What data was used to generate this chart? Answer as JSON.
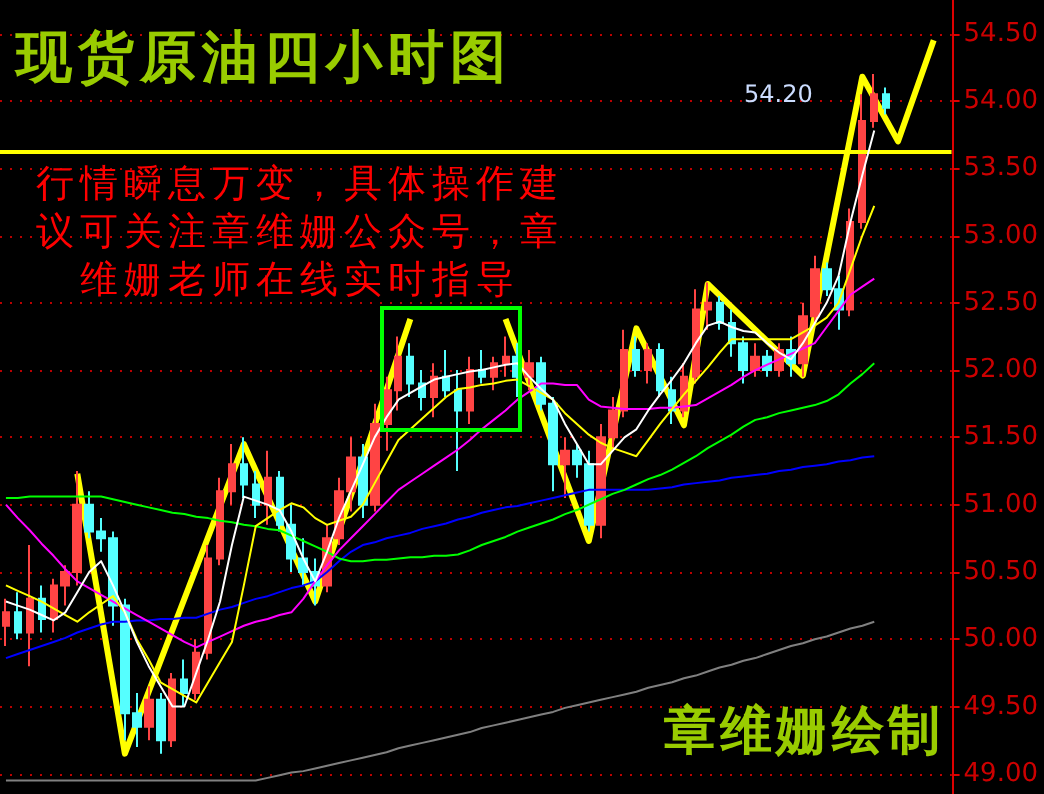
{
  "chart_data": {
    "type": "candlestick",
    "title": "现货原油四小时图",
    "annotations": [
      "行情瞬息万变，具体操作建议可关注章维姗公众号，章维姗老师在线实时指导",
      "章维姗绘制",
      "54.20"
    ],
    "categories": [
      null,
      null,
      null,
      null,
      null,
      null,
      null,
      null,
      null,
      null,
      null,
      null,
      null,
      null,
      null,
      null,
      null,
      null,
      null,
      null,
      null,
      null,
      null,
      null,
      null,
      null,
      null,
      null,
      null,
      null,
      null,
      null,
      null,
      null,
      null,
      null,
      null,
      null,
      null,
      null,
      null,
      null,
      null,
      null,
      null,
      null,
      null,
      null,
      null,
      null,
      null,
      null,
      null,
      null,
      null,
      null,
      null,
      null,
      null,
      null,
      null,
      null,
      null,
      null,
      null,
      null,
      null,
      null,
      null,
      null,
      null,
      null,
      null,
      null,
      null,
      null,
      null,
      null,
      null,
      null
    ],
    "ohlc": [
      [
        50.1,
        50.3,
        49.95,
        50.2
      ],
      [
        50.2,
        50.35,
        50.0,
        50.05
      ],
      [
        50.05,
        50.7,
        49.8,
        50.3
      ],
      [
        50.3,
        50.4,
        50.05,
        50.15
      ],
      [
        50.15,
        50.45,
        50.05,
        50.4
      ],
      [
        50.4,
        50.55,
        50.25,
        50.5
      ],
      [
        50.5,
        51.25,
        50.4,
        51.0
      ],
      [
        51.0,
        51.1,
        50.75,
        50.8
      ],
      [
        50.8,
        50.9,
        50.65,
        50.75
      ],
      [
        50.75,
        50.8,
        50.1,
        50.25
      ],
      [
        50.25,
        50.3,
        49.25,
        49.45
      ],
      [
        49.45,
        49.6,
        49.2,
        49.35
      ],
      [
        49.35,
        49.65,
        49.25,
        49.55
      ],
      [
        49.55,
        49.6,
        49.15,
        49.25
      ],
      [
        49.25,
        49.75,
        49.2,
        49.7
      ],
      [
        49.7,
        49.85,
        49.5,
        49.6
      ],
      [
        49.6,
        50.0,
        49.55,
        49.9
      ],
      [
        49.9,
        50.7,
        49.85,
        50.6
      ],
      [
        50.6,
        51.2,
        50.55,
        51.1
      ],
      [
        51.1,
        51.45,
        51.0,
        51.3
      ],
      [
        51.3,
        51.5,
        51.05,
        51.15
      ],
      [
        51.15,
        51.25,
        50.9,
        51.0
      ],
      [
        51.0,
        51.4,
        50.85,
        51.2
      ],
      [
        51.2,
        51.25,
        50.8,
        50.85
      ],
      [
        50.85,
        51.0,
        50.5,
        50.6
      ],
      [
        50.6,
        50.75,
        50.4,
        50.5
      ],
      [
        50.5,
        50.6,
        50.25,
        50.4
      ],
      [
        50.4,
        50.85,
        50.35,
        50.75
      ],
      [
        50.75,
        51.2,
        50.7,
        51.1
      ],
      [
        51.1,
        51.5,
        50.95,
        51.35
      ],
      [
        51.35,
        51.45,
        50.9,
        51.0
      ],
      [
        51.0,
        51.75,
        50.95,
        51.6
      ],
      [
        51.6,
        51.95,
        51.4,
        51.85
      ],
      [
        51.85,
        52.25,
        51.7,
        52.1
      ],
      [
        52.1,
        52.2,
        51.8,
        51.9
      ],
      [
        51.9,
        52.0,
        51.7,
        51.8
      ],
      [
        51.8,
        52.05,
        51.65,
        51.95
      ],
      [
        51.95,
        52.15,
        51.8,
        51.85
      ],
      [
        51.85,
        52.0,
        51.25,
        51.7
      ],
      [
        51.7,
        52.1,
        51.6,
        52.0
      ],
      [
        52.0,
        52.15,
        51.9,
        51.95
      ],
      [
        51.95,
        52.1,
        51.85,
        52.05
      ],
      [
        52.05,
        52.25,
        51.95,
        52.1
      ],
      [
        52.1,
        52.2,
        51.8,
        51.95
      ],
      [
        51.95,
        52.15,
        51.85,
        52.05
      ],
      [
        52.05,
        52.1,
        51.7,
        51.75
      ],
      [
        51.75,
        51.8,
        51.1,
        51.3
      ],
      [
        51.3,
        51.5,
        51.05,
        51.4
      ],
      [
        51.4,
        51.45,
        51.2,
        51.3
      ],
      [
        51.3,
        51.4,
        50.8,
        50.85
      ],
      [
        50.85,
        51.6,
        50.75,
        51.5
      ],
      [
        51.5,
        51.8,
        51.4,
        51.7
      ],
      [
        51.7,
        52.3,
        51.65,
        52.15
      ],
      [
        52.15,
        52.25,
        51.95,
        52.0
      ],
      [
        52.0,
        52.2,
        51.9,
        52.15
      ],
      [
        52.15,
        52.2,
        51.8,
        51.85
      ],
      [
        51.85,
        51.95,
        51.6,
        51.7
      ],
      [
        51.7,
        52.05,
        51.65,
        51.95
      ],
      [
        51.95,
        52.6,
        51.9,
        52.45
      ],
      [
        52.45,
        52.65,
        52.3,
        52.5
      ],
      [
        52.5,
        52.55,
        52.3,
        52.35
      ],
      [
        52.35,
        52.45,
        52.1,
        52.2
      ],
      [
        52.2,
        52.25,
        51.9,
        52.0
      ],
      [
        52.0,
        52.2,
        51.95,
        52.1
      ],
      [
        52.1,
        52.15,
        51.95,
        52.0
      ],
      [
        52.0,
        52.2,
        51.95,
        52.15
      ],
      [
        52.15,
        52.25,
        51.95,
        52.05
      ],
      [
        52.05,
        52.5,
        51.95,
        52.4
      ],
      [
        52.4,
        52.85,
        52.35,
        52.75
      ],
      [
        52.75,
        52.8,
        52.55,
        52.6
      ],
      [
        52.6,
        52.7,
        52.3,
        52.45
      ],
      [
        52.45,
        53.2,
        52.4,
        53.1
      ],
      [
        53.1,
        54.05,
        53.05,
        53.85
      ],
      [
        53.85,
        54.2,
        53.8,
        54.05
      ],
      [
        54.05,
        54.1,
        53.9,
        53.95
      ],
      null,
      null,
      null,
      null,
      null
    ],
    "series": [
      {
        "type": "line",
        "color": "#808080",
        "values": [
          48.95,
          48.95,
          48.95,
          48.95,
          48.95,
          48.95,
          48.95,
          48.95,
          48.95,
          48.95,
          48.95,
          48.95,
          48.95,
          48.95,
          48.95,
          48.95,
          48.95,
          48.95,
          48.95,
          48.95,
          48.95,
          48.95,
          48.97,
          48.99,
          49.01,
          49.02,
          49.04,
          49.06,
          49.08,
          49.1,
          49.12,
          49.14,
          49.16,
          49.19,
          49.21,
          49.23,
          49.25,
          49.27,
          49.29,
          49.31,
          49.34,
          49.36,
          49.38,
          49.4,
          49.42,
          49.44,
          49.46,
          49.49,
          49.51,
          49.53,
          49.55,
          49.57,
          49.59,
          49.61,
          49.64,
          49.66,
          49.68,
          49.71,
          49.73,
          49.76,
          49.79,
          49.81,
          49.84,
          49.86,
          49.89,
          49.92,
          49.95,
          49.97,
          50.0,
          50.02,
          50.05,
          50.08,
          50.1,
          50.13,
          null,
          null,
          null,
          null,
          null,
          null
        ]
      },
      {
        "type": "line",
        "color": "#0000ff",
        "values": [
          49.86,
          49.89,
          49.92,
          49.95,
          49.98,
          50.01,
          50.05,
          50.08,
          50.11,
          50.13,
          50.13,
          50.14,
          50.14,
          50.15,
          50.15,
          50.16,
          50.16,
          50.19,
          50.22,
          50.24,
          50.27,
          50.3,
          50.32,
          50.35,
          50.38,
          50.4,
          50.43,
          50.5,
          50.58,
          50.65,
          50.7,
          50.72,
          50.75,
          50.77,
          50.79,
          50.82,
          50.84,
          50.86,
          50.89,
          50.91,
          50.94,
          50.96,
          50.98,
          50.99,
          51.01,
          51.03,
          51.05,
          51.07,
          51.09,
          51.11,
          51.11,
          51.11,
          51.11,
          51.11,
          51.11,
          51.12,
          51.13,
          51.15,
          51.16,
          51.17,
          51.18,
          51.2,
          51.21,
          51.22,
          51.23,
          51.25,
          51.26,
          51.28,
          51.29,
          51.3,
          51.32,
          51.33,
          51.35,
          51.36,
          null,
          null,
          null,
          null,
          null,
          null
        ]
      },
      {
        "type": "line",
        "color": "#00ff00",
        "values": [
          51.05,
          51.05,
          51.06,
          51.06,
          51.06,
          51.06,
          51.06,
          51.06,
          51.06,
          51.04,
          51.02,
          51.0,
          50.98,
          50.96,
          50.94,
          50.93,
          50.91,
          50.9,
          50.88,
          50.87,
          50.85,
          50.84,
          50.82,
          50.81,
          50.77,
          50.73,
          50.69,
          50.65,
          50.6,
          50.58,
          50.58,
          50.59,
          50.59,
          50.6,
          50.61,
          50.61,
          50.62,
          50.62,
          50.63,
          50.66,
          50.7,
          50.73,
          50.76,
          50.8,
          50.83,
          50.86,
          50.89,
          50.93,
          50.96,
          51.0,
          51.04,
          51.08,
          51.11,
          51.15,
          51.19,
          51.22,
          51.26,
          51.31,
          51.36,
          51.42,
          51.47,
          51.52,
          51.58,
          51.63,
          51.65,
          51.68,
          51.7,
          51.72,
          51.74,
          51.77,
          51.82,
          51.9,
          51.97,
          52.05,
          null,
          null,
          null,
          null,
          null,
          null
        ]
      },
      {
        "type": "line",
        "color": "#ff00ff",
        "values": [
          51.0,
          50.9,
          50.81,
          50.71,
          50.62,
          50.52,
          50.43,
          50.38,
          50.33,
          50.28,
          50.23,
          50.18,
          50.13,
          50.08,
          50.03,
          49.98,
          49.94,
          49.98,
          50.02,
          50.06,
          50.1,
          50.13,
          50.15,
          50.18,
          50.2,
          50.3,
          50.43,
          50.55,
          50.66,
          50.75,
          50.84,
          50.93,
          51.02,
          51.11,
          51.17,
          51.23,
          51.29,
          51.35,
          51.41,
          51.48,
          51.56,
          51.63,
          51.7,
          51.78,
          51.84,
          51.9,
          51.9,
          51.89,
          51.89,
          51.78,
          51.73,
          51.72,
          51.71,
          51.71,
          51.71,
          51.72,
          51.72,
          51.73,
          51.74,
          51.79,
          51.84,
          51.89,
          51.95,
          52.0,
          52.04,
          52.08,
          52.12,
          52.16,
          52.2,
          52.32,
          52.44,
          52.56,
          52.62,
          52.68,
          null,
          null,
          null,
          null,
          null,
          null
        ]
      },
      {
        "type": "line",
        "color": "#ffff00",
        "values": [
          50.4,
          50.36,
          50.32,
          50.28,
          50.23,
          50.18,
          50.13,
          50.2,
          50.26,
          50.32,
          50.2,
          50.0,
          49.85,
          49.68,
          49.63,
          49.58,
          49.53,
          49.68,
          49.83,
          49.98,
          50.4,
          50.84,
          50.9,
          50.96,
          51.01,
          50.98,
          50.9,
          50.85,
          50.88,
          50.91,
          51.0,
          51.16,
          51.32,
          51.48,
          51.56,
          51.64,
          51.72,
          51.8,
          51.86,
          51.87,
          51.89,
          51.9,
          51.92,
          51.93,
          51.88,
          51.83,
          51.78,
          51.68,
          51.6,
          51.52,
          51.46,
          51.42,
          51.39,
          51.36,
          51.48,
          51.6,
          51.71,
          51.82,
          51.92,
          52.02,
          52.13,
          52.23,
          52.23,
          52.23,
          52.23,
          52.23,
          52.23,
          52.28,
          52.33,
          52.39,
          52.5,
          52.75,
          53.0,
          53.22,
          null,
          null,
          null,
          null,
          null,
          null
        ]
      },
      {
        "type": "line",
        "color": "#ffffff",
        "values": [
          50.28,
          50.25,
          50.22,
          50.18,
          50.14,
          50.2,
          50.35,
          50.5,
          50.58,
          50.4,
          50.2,
          49.98,
          49.8,
          49.65,
          49.5,
          49.5,
          49.75,
          50.0,
          50.28,
          50.7,
          51.06,
          51.03,
          51.0,
          50.96,
          50.8,
          50.6,
          50.43,
          50.65,
          50.9,
          51.1,
          51.3,
          51.5,
          51.65,
          51.78,
          51.83,
          51.88,
          51.93,
          51.95,
          51.97,
          51.99,
          52.0,
          52.02,
          52.04,
          52.05,
          51.95,
          51.86,
          51.78,
          51.6,
          51.45,
          51.3,
          51.3,
          51.4,
          51.5,
          51.56,
          51.7,
          51.82,
          51.93,
          52.05,
          52.2,
          52.33,
          52.36,
          52.32,
          52.29,
          52.28,
          52.2,
          52.13,
          52.08,
          52.2,
          52.35,
          52.5,
          52.7,
          53.1,
          53.45,
          53.78,
          null,
          null,
          null,
          null,
          null,
          null
        ]
      },
      {
        "type": "line",
        "color": "#ffff00",
        "values": [
          null,
          null,
          null,
          null,
          null,
          null,
          51.23,
          null,
          null,
          null,
          49.15,
          null,
          null,
          null,
          null,
          null,
          null,
          null,
          null,
          null,
          51.45,
          null,
          null,
          null,
          null,
          null,
          50.28,
          null,
          null,
          null,
          null,
          null,
          null,
          null,
          52.38,
          null,
          null,
          null,
          null,
          null,
          null,
          null,
          null,
          null,
          null,
          null,
          null,
          null,
          null,
          null,
          null,
          null,
          null,
          null,
          null,
          null,
          null,
          null,
          null,
          null,
          null,
          null,
          null,
          null,
          null,
          null,
          null,
          null,
          null,
          null,
          null,
          null,
          null,
          null,
          null,
          null,
          null,
          null,
          null,
          null
        ]
      },
      {
        "type": "line",
        "color": "#ffff00",
        "values": [
          null,
          null,
          null,
          null,
          null,
          null,
          null,
          null,
          null,
          null,
          null,
          null,
          null,
          null,
          null,
          null,
          null,
          null,
          null,
          null,
          null,
          null,
          null,
          null,
          null,
          null,
          null,
          null,
          null,
          null,
          null,
          null,
          null,
          null,
          null,
          null,
          null,
          null,
          null,
          null,
          null,
          null,
          52.38,
          null,
          null,
          null,
          null,
          null,
          null,
          50.73,
          null,
          null,
          null,
          52.31,
          null,
          null,
          null,
          51.59,
          null,
          52.64,
          null,
          null,
          null,
          null,
          null,
          null,
          null,
          51.96,
          null,
          null,
          null,
          null,
          54.18,
          null,
          null,
          53.7,
          null,
          null,
          54.45,
          null
        ]
      }
    ],
    "ylim": [
      48.85,
      54.75
    ],
    "yticks": [
      {
        "value": 49,
        "label": "49.00"
      },
      {
        "value": 49.5,
        "label": "49.50"
      },
      {
        "value": 50,
        "label": "50.00"
      },
      {
        "value": 50.5,
        "label": "50.50"
      },
      {
        "value": 51,
        "label": "51.00"
      },
      {
        "value": 51.5,
        "label": "51.50"
      },
      {
        "value": 52,
        "label": "52.00"
      },
      {
        "value": 52.5,
        "label": "52.50"
      },
      {
        "value": 53,
        "label": "53.00"
      },
      {
        "value": 53.5,
        "label": "53.50"
      },
      {
        "value": 54,
        "label": "54.00"
      },
      {
        "value": 54.5,
        "label": "54.50"
      }
    ],
    "ref_lines": [
      {
        "axis": "y",
        "value": 53.62,
        "color": "#ffff00"
      }
    ],
    "grid": "y",
    "tick_labels": "y"
  }
}
